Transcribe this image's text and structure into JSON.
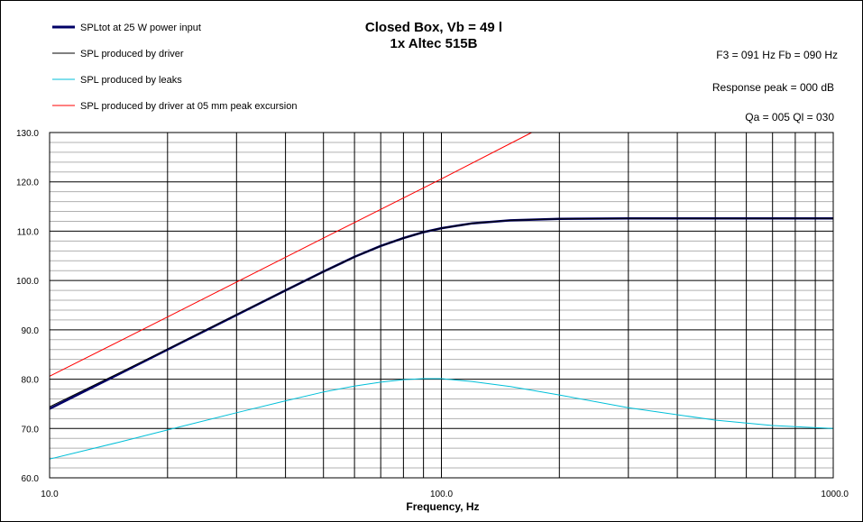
{
  "chart_data": {
    "type": "line",
    "title": [
      "Closed Box, Vb = 49 l",
      "1x Altec 515B"
    ],
    "xlabel": "Frequency, Hz",
    "ylabel": "",
    "x_scale": "log",
    "xlim": [
      10,
      1000
    ],
    "ylim": [
      60,
      130
    ],
    "x_tick_labels": [
      {
        "value": 10,
        "label": "10.0"
      },
      {
        "value": 100,
        "label": "100.0"
      },
      {
        "value": 1000,
        "label": "1000.0"
      }
    ],
    "y_tick_labels": [
      "60.0",
      "70.0",
      "80.0",
      "90.0",
      "100.0",
      "110.0",
      "120.0",
      "130.0"
    ],
    "grid": true,
    "legend_position": "top-left",
    "annotations": [
      "F3 = 091  Hz  Fb = 090  Hz",
      "Response peak = 000  dB",
      "Qa = 005   Ql = 030"
    ],
    "series": [
      {
        "name": "SPLtot at 25 W power input",
        "color": "#000066",
        "thick": true,
        "x": [
          10,
          15,
          20,
          30,
          40,
          50,
          60,
          70,
          80,
          90,
          100,
          120,
          150,
          200,
          300,
          500,
          1000
        ],
        "y": [
          74.0,
          81.0,
          86.0,
          93.0,
          98.0,
          101.8,
          104.8,
          107.0,
          108.6,
          109.8,
          110.6,
          111.6,
          112.2,
          112.5,
          112.6,
          112.6,
          112.6
        ]
      },
      {
        "name": "SPL produced by driver",
        "color": "#000000",
        "thick": false,
        "x": [
          10,
          15,
          20,
          30,
          40,
          50,
          60,
          70,
          80,
          90,
          100,
          120,
          150,
          200,
          300,
          500,
          1000
        ],
        "y": [
          74.4,
          81.2,
          86.1,
          93.1,
          98.0,
          101.8,
          104.8,
          107.0,
          108.6,
          109.8,
          110.6,
          111.6,
          112.2,
          112.5,
          112.6,
          112.6,
          112.6
        ]
      },
      {
        "name": "SPL produced by leaks",
        "color": "#00BFD8",
        "thick": false,
        "x": [
          10,
          15,
          20,
          30,
          40,
          50,
          60,
          70,
          80,
          90,
          100,
          120,
          150,
          200,
          300,
          500,
          700,
          1000
        ],
        "y": [
          63.8,
          67.2,
          69.7,
          73.2,
          75.6,
          77.4,
          78.6,
          79.4,
          79.9,
          80.1,
          80.1,
          79.5,
          78.5,
          76.8,
          74.2,
          71.7,
          70.6,
          70.0
        ]
      },
      {
        "name": "SPL produced by driver at 05 mm peak excursion",
        "color": "#FF0000",
        "thick": false,
        "x": [
          10,
          20,
          50,
          100,
          170
        ],
        "y": [
          80.6,
          92.6,
          108.6,
          120.6,
          130.0
        ]
      }
    ]
  }
}
